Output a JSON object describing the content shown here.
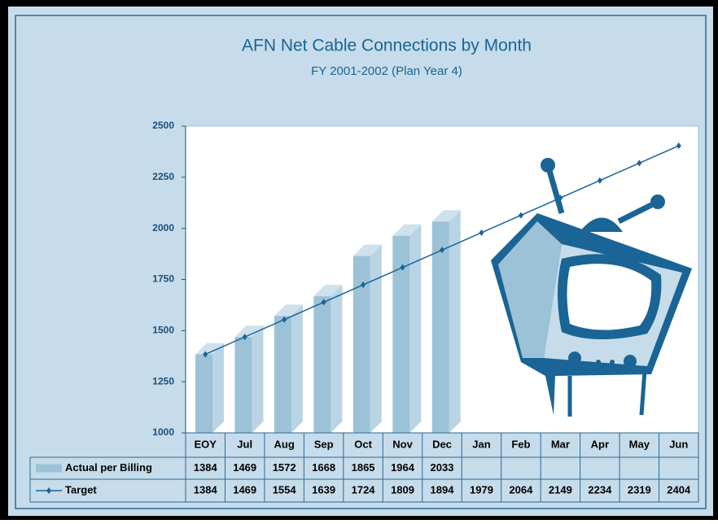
{
  "chart_data": {
    "type": "bar",
    "title": "AFN Net Cable Connections by Month",
    "subtitle": "FY 2001-2002 (Plan Year 4)",
    "categories": [
      "EOY",
      "Jul",
      "Aug",
      "Sep",
      "Oct",
      "Nov",
      "Dec",
      "Jan",
      "Feb",
      "Mar",
      "Apr",
      "May",
      "Jun"
    ],
    "series": [
      {
        "name": "Actual per Billing",
        "type": "bar",
        "color": "#9cc2d8",
        "values": [
          1384,
          1469,
          1572,
          1668,
          1865,
          1964,
          2033,
          null,
          null,
          null,
          null,
          null,
          null
        ]
      },
      {
        "name": "Target",
        "type": "line",
        "color": "#1a6496",
        "values": [
          1384,
          1469,
          1554,
          1639,
          1724,
          1809,
          1894,
          1979,
          2064,
          2149,
          2234,
          2319,
          2404
        ]
      }
    ],
    "ylim": [
      1000,
      2500
    ],
    "yticks": [
      1000,
      1250,
      1500,
      1750,
      2000,
      2250,
      2500
    ]
  }
}
